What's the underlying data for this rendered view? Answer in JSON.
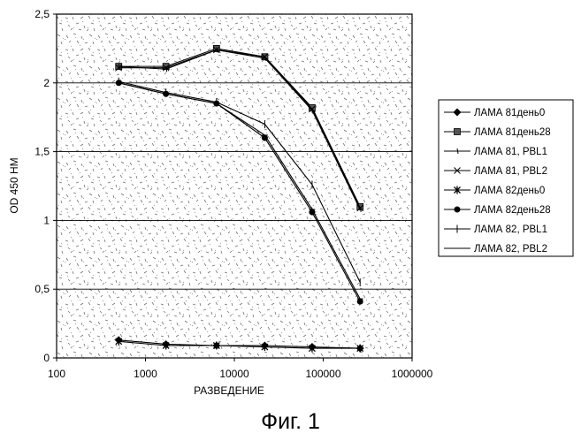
{
  "figure_caption": "Фиг. 1",
  "chart_data": {
    "type": "line",
    "xlabel": "РАЗВЕДЕНИЕ",
    "ylabel": "OD 450 HM",
    "xscale": "log",
    "xlim": [
      100,
      1000000
    ],
    "ylim": [
      0,
      2.5
    ],
    "x_ticks": [
      "100",
      "1000",
      "10000",
      "100000",
      "1000000"
    ],
    "y_ticks": [
      "0",
      "0,5",
      "1",
      "1,5",
      "2",
      "2,5"
    ],
    "grid": "horizontal",
    "legend_position": "right",
    "x": [
      500,
      1700,
      6300,
      22000,
      75000,
      260000
    ],
    "series": [
      {
        "name": "ЛАМА 81день0",
        "marker": "diamond",
        "values": [
          0.13,
          0.1,
          0.09,
          0.09,
          0.08,
          0.07
        ]
      },
      {
        "name": "ЛАМА 81день28",
        "marker": "square",
        "values": [
          2.12,
          2.12,
          2.25,
          2.19,
          1.82,
          1.1
        ]
      },
      {
        "name": "ЛАМА 81, PBL1",
        "marker": "tick",
        "values": [
          2.12,
          2.1,
          2.24,
          2.18,
          1.8,
          1.08
        ]
      },
      {
        "name": "ЛАМА 81, PBL2",
        "marker": "xbar",
        "values": [
          2.11,
          2.11,
          2.24,
          2.19,
          1.81,
          1.09
        ]
      },
      {
        "name": "ЛАМА 82день0",
        "marker": "star",
        "values": [
          0.12,
          0.09,
          0.09,
          0.08,
          0.07,
          0.07
        ]
      },
      {
        "name": "ЛАМА 82день28",
        "marker": "circle",
        "values": [
          2.0,
          1.92,
          1.85,
          1.6,
          1.06,
          0.41
        ]
      },
      {
        "name": "ЛАМА 82, PBL1",
        "marker": "plus",
        "values": [
          2.01,
          1.93,
          1.86,
          1.7,
          1.26,
          0.55
        ]
      },
      {
        "name": "ЛАМА 82, PBL2",
        "marker": "dash",
        "values": [
          2.0,
          1.92,
          1.85,
          1.62,
          1.08,
          0.43
        ]
      }
    ],
    "colors": {
      "line": "#000000",
      "background": "#ffffff",
      "texture": "#555555",
      "gridline": "#000000"
    }
  }
}
